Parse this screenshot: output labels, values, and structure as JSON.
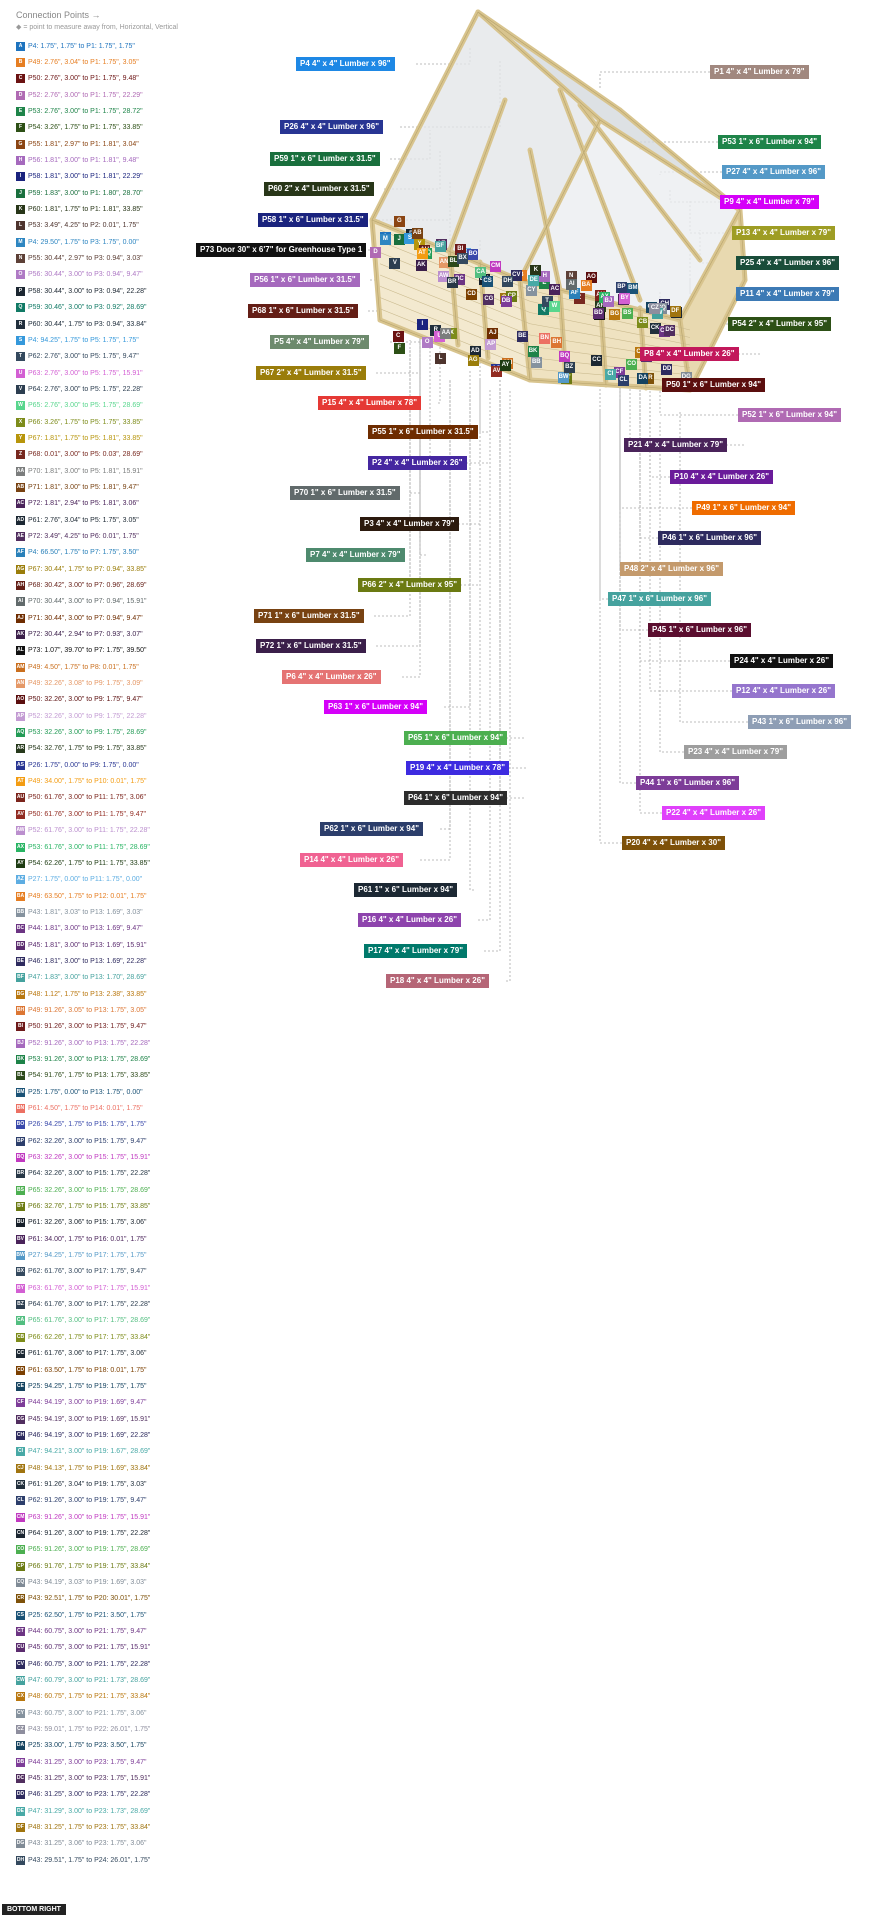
{
  "header": {
    "title": "Connection Points →",
    "subtitle": "◆ = point to measure away from, Horizontal, Vertical"
  },
  "connection_points": [
    {
      "code": "A",
      "text": "P4: 1.75\", 1.75\" to P1: 1.75\", 1.75\"",
      "color": "#1e73be"
    },
    {
      "code": "B",
      "text": "P49: 2.76\", 3.04\" to P1: 1.75\", 3.05\"",
      "color": "#e67e22"
    },
    {
      "code": "C",
      "text": "P50: 2.76\", 3.00\" to P1: 1.75\", 9.48\"",
      "color": "#6b1212"
    },
    {
      "code": "D",
      "text": "P52: 2.76\", 3.00\" to P1: 1.75\", 22.29\"",
      "color": "#b06ab3"
    },
    {
      "code": "E",
      "text": "P53: 2.76\", 3.00\" to P1: 1.75\", 28.72\"",
      "color": "#1e8449"
    },
    {
      "code": "F",
      "text": "P54: 3.26\", 1.75\" to P1: 1.75\", 33.85\"",
      "color": "#2d5016"
    },
    {
      "code": "G",
      "text": "P55: 1.81\", 2.97\" to P1: 1.81\", 3.04\"",
      "color": "#8b4513"
    },
    {
      "code": "H",
      "text": "P56: 1.81\", 3.00\" to P1: 1.81\", 9.48\"",
      "color": "#a569bd"
    },
    {
      "code": "I",
      "text": "P58: 1.81\", 3.00\" to P1: 1.81\", 22.29\"",
      "color": "#1a237e"
    },
    {
      "code": "J",
      "text": "P59: 1.83\", 3.00\" to P1: 1.80\", 28.70\"",
      "color": "#196f3d"
    },
    {
      "code": "K",
      "text": "P60: 1.81\", 1.75\" to P1: 1.81\", 33.85\"",
      "color": "#283618"
    },
    {
      "code": "L",
      "text": "P53: 3.49\", 4.25\" to P2: 0.01\", 1.75\"",
      "color": "#4e342e"
    },
    {
      "code": "M",
      "text": "P4: 29.50\", 1.75\" to P3: 1.75\", 0.00\"",
      "color": "#2e86c1"
    },
    {
      "code": "N",
      "text": "P55: 30.44\", 2.97\" to P3: 0.94\", 3.03\"",
      "color": "#5d4037"
    },
    {
      "code": "O",
      "text": "P56: 30.44\", 3.00\" to P3: 0.94\", 9.47\"",
      "color": "#af7ac5"
    },
    {
      "code": "P",
      "text": "P58: 30.44\", 3.00\" to P3: 0.94\", 22.28\"",
      "color": "#1b2631"
    },
    {
      "code": "Q",
      "text": "P59: 30.46\", 3.00\" to P3: 0.92\", 28.69\"",
      "color": "#117a65"
    },
    {
      "code": "R",
      "text": "P60: 30.44\", 1.75\" to P3: 0.94\", 33.84\"",
      "color": "#212f3d"
    },
    {
      "code": "S",
      "text": "P4: 94.25\", 1.75\" to P5: 1.75\", 1.75\"",
      "color": "#3498db"
    },
    {
      "code": "T",
      "text": "P62: 2.76\", 3.00\" to P5: 1.75\", 9.47\"",
      "color": "#34495e"
    },
    {
      "code": "U",
      "text": "P63: 2.76\", 3.00\" to P5: 1.75\", 15.91\"",
      "color": "#d35fd3"
    },
    {
      "code": "V",
      "text": "P64: 2.76\", 3.00\" to P5: 1.75\", 22.28\"",
      "color": "#2c3e50"
    },
    {
      "code": "W",
      "text": "P65: 2.76\", 3.00\" to P5: 1.75\", 28.69\"",
      "color": "#58d68d"
    },
    {
      "code": "X",
      "text": "P66: 3.26\", 1.75\" to P5: 1.75\", 33.85\"",
      "color": "#7d8c1a"
    },
    {
      "code": "Y",
      "text": "P67: 1.81\", 1.75\" to P5: 1.81\", 33.85\"",
      "color": "#b7950b"
    },
    {
      "code": "Z",
      "text": "P68: 0.01\", 3.00\" to P5: 0.03\", 28.69\"",
      "color": "#78281f"
    },
    {
      "code": "AA",
      "text": "P70: 1.81\", 3.00\" to P5: 1.81\", 15.91\"",
      "color": "#7b7d7d"
    },
    {
      "code": "AB",
      "text": "P71: 1.81\", 3.00\" to P5: 1.81\", 9.47\"",
      "color": "#784212"
    },
    {
      "code": "AC",
      "text": "P72: 1.81\", 2.94\" to P5: 1.81\", 3.06\"",
      "color": "#4a235a"
    },
    {
      "code": "AD",
      "text": "P61: 2.76\", 3.04\" to P5: 1.75\", 3.05\"",
      "color": "#1c2833"
    },
    {
      "code": "AE",
      "text": "P72: 3.49\", 4.25\" to P6: 0.01\", 1.75\"",
      "color": "#512e5f"
    },
    {
      "code": "AF",
      "text": "P4: 66.50\", 1.75\" to P7: 1.75\", 3.50\"",
      "color": "#2980b9"
    },
    {
      "code": "AG",
      "text": "P67: 30.44\", 1.75\" to P7: 0.94\", 33.85\"",
      "color": "#9a7d0a"
    },
    {
      "code": "AH",
      "text": "P68: 30.42\", 3.00\" to P7: 0.96\", 28.69\"",
      "color": "#641e16"
    },
    {
      "code": "AI",
      "text": "P70: 30.44\", 3.00\" to P7: 0.94\", 15.91\"",
      "color": "#616a6b"
    },
    {
      "code": "AJ",
      "text": "P71: 30.44\", 3.00\" to P7: 0.94\", 9.47\"",
      "color": "#6e2c00"
    },
    {
      "code": "AK",
      "text": "P72: 30.44\", 2.94\" to P7: 0.93\", 3.07\"",
      "color": "#3b1f4a"
    },
    {
      "code": "AL",
      "text": "P73: 1.07\", 39.70\" to P7: 1.75\", 39.50\"",
      "color": "#111111"
    },
    {
      "code": "AM",
      "text": "P49: 4.50\", 1.75\" to P8: 0.01\", 1.75\"",
      "color": "#ca6f1e"
    },
    {
      "code": "AN",
      "text": "P49: 32.26\", 3.08\" to P9: 1.75\", 3.09\"",
      "color": "#e59866"
    },
    {
      "code": "AO",
      "text": "P50: 32.26\", 3.00\" to P9: 1.75\", 9.47\"",
      "color": "#5b0e0e"
    },
    {
      "code": "AP",
      "text": "P52: 32.26\", 3.00\" to P9: 1.75\", 22.28\"",
      "color": "#c39bd3"
    },
    {
      "code": "AQ",
      "text": "P53: 32.26\", 3.00\" to P9: 1.75\", 28.69\"",
      "color": "#239b56"
    },
    {
      "code": "AR",
      "text": "P54: 32.76\", 1.75\" to P9: 1.75\", 33.85\"",
      "color": "#27391c"
    },
    {
      "code": "AS",
      "text": "P26: 1.75\", 0.00\" to P9: 1.75\", 0.00\"",
      "color": "#283593"
    },
    {
      "code": "AT",
      "text": "P49: 34.00\", 1.75\" to P10: 0.01\", 1.75\"",
      "color": "#f39c12"
    },
    {
      "code": "AU",
      "text": "P50: 61.76\", 3.00\" to P11: 1.75\", 3.06\"",
      "color": "#7b241c"
    },
    {
      "code": "AV",
      "text": "P50: 61.76\", 3.00\" to P11: 1.75\", 9.47\"",
      "color": "#922b21"
    },
    {
      "code": "AW",
      "text": "P52: 61.76\", 3.00\" to P11: 1.75\", 22.28\"",
      "color": "#bb8fce"
    },
    {
      "code": "AX",
      "text": "P53: 61.76\", 3.00\" to P11: 1.75\", 28.69\"",
      "color": "#28b463"
    },
    {
      "code": "AY",
      "text": "P54: 62.26\", 1.75\" to P11: 1.75\", 33.85\"",
      "color": "#1d3b12"
    },
    {
      "code": "AZ",
      "text": "P27: 1.75\", 0.00\" to P11: 1.75\", 0.00\"",
      "color": "#5dade2"
    },
    {
      "code": "BA",
      "text": "P49: 63.50\", 1.75\" to P12: 0.01\", 1.75\"",
      "color": "#e67e22"
    },
    {
      "code": "BB",
      "text": "P43: 1.81\", 3.03\" to P13: 1.69\", 3.03\"",
      "color": "#85929e"
    },
    {
      "code": "BC",
      "text": "P44: 1.81\", 3.00\" to P13: 1.69\", 9.47\"",
      "color": "#6c3483"
    },
    {
      "code": "BD",
      "text": "P45: 1.81\", 3.00\" to P13: 1.69\", 15.91\"",
      "color": "#5b2c6f"
    },
    {
      "code": "BE",
      "text": "P46: 1.81\", 3.00\" to P13: 1.69\", 22.28\"",
      "color": "#2e2b5f"
    },
    {
      "code": "BF",
      "text": "P47: 1.83\", 3.00\" to P13: 1.70\", 28.69\"",
      "color": "#45a29e"
    },
    {
      "code": "BG",
      "text": "P48: 1.12\", 1.75\" to P13: 2.38\", 33.85\"",
      "color": "#b9770e"
    },
    {
      "code": "BH",
      "text": "P49: 91.26\", 3.05\" to P13: 1.75\", 3.05\"",
      "color": "#dc7633"
    },
    {
      "code": "BI",
      "text": "P50: 91.26\", 3.00\" to P13: 1.75\", 9.47\"",
      "color": "#6e1a1a"
    },
    {
      "code": "BJ",
      "text": "P52: 91.26\", 3.00\" to P13: 1.75\", 22.28\"",
      "color": "#a569bd"
    },
    {
      "code": "BK",
      "text": "P53: 91.26\", 3.00\" to P13: 1.75\", 28.69\"",
      "color": "#1d8348"
    },
    {
      "code": "BL",
      "text": "P54: 91.76\", 1.75\" to P13: 1.75\", 33.85\"",
      "color": "#2d4a1a"
    },
    {
      "code": "BM",
      "text": "P25: 1.75\", 0.00\" to P13: 1.75\", 0.00\"",
      "color": "#1a5276"
    },
    {
      "code": "BN",
      "text": "P61: 4.50\", 1.75\" to P14: 0.01\", 1.75\"",
      "color": "#ec7063"
    },
    {
      "code": "BO",
      "text": "P26: 94.25\", 1.75\" to P15: 1.75\", 1.75\"",
      "color": "#3949ab"
    },
    {
      "code": "BP",
      "text": "P62: 32.26\", 3.00\" to P15: 1.75\", 9.47\"",
      "color": "#2c3e6b"
    },
    {
      "code": "BQ",
      "text": "P63: 32.26\", 3.00\" to P15: 1.75\", 15.91\"",
      "color": "#c039c0"
    },
    {
      "code": "BR",
      "text": "P64: 32.26\", 3.00\" to P15: 1.75\", 22.28\"",
      "color": "#273746"
    },
    {
      "code": "BS",
      "text": "P65: 32.26\", 3.00\" to P15: 1.75\", 28.69\"",
      "color": "#4caf50"
    },
    {
      "code": "BT",
      "text": "P66: 32.76\", 1.75\" to P15: 1.75\", 33.85\"",
      "color": "#6b7a12"
    },
    {
      "code": "BU",
      "text": "P61: 32.26\", 3.06\" to P15: 1.75\", 3.06\"",
      "color": "#17202a"
    },
    {
      "code": "BV",
      "text": "P61: 34.00\", 1.75\" to P16: 0.01\", 1.75\"",
      "color": "#4a235a"
    },
    {
      "code": "BW",
      "text": "P27: 94.25\", 1.75\" to P17: 1.75\", 1.75\"",
      "color": "#5499c7"
    },
    {
      "code": "BX",
      "text": "P62: 61.76\", 3.00\" to P17: 1.75\", 9.47\"",
      "color": "#34495e"
    },
    {
      "code": "BY",
      "text": "P63: 61.76\", 3.00\" to P17: 1.75\", 15.91\"",
      "color": "#d35fd3"
    },
    {
      "code": "BZ",
      "text": "P64: 61.76\", 3.00\" to P17: 1.75\", 22.28\"",
      "color": "#2c3e50"
    },
    {
      "code": "CA",
      "text": "P65: 61.76\", 3.00\" to P17: 1.75\", 28.69\"",
      "color": "#52be80"
    },
    {
      "code": "CB",
      "text": "P66: 62.26\", 1.75\" to P17: 1.75\", 33.84\"",
      "color": "#7d8c1a"
    },
    {
      "code": "CC",
      "text": "P61: 61.76\", 3.06\" to P17: 1.75\", 3.06\"",
      "color": "#1c2833"
    },
    {
      "code": "CD",
      "text": "P61: 63.50\", 1.75\" to P18: 0.01\", 1.75\"",
      "color": "#7b3f00"
    },
    {
      "code": "CE",
      "text": "P25: 94.25\", 1.75\" to P19: 1.75\", 1.75\"",
      "color": "#154360"
    },
    {
      "code": "CF",
      "text": "P44: 94.19\", 3.00\" to P19: 1.69\", 9.47\"",
      "color": "#7d3c98"
    },
    {
      "code": "CG",
      "text": "P45: 94.19\", 3.00\" to P19: 1.69\", 15.91\"",
      "color": "#512e5f"
    },
    {
      "code": "CH",
      "text": "P46: 94.19\", 3.00\" to P19: 1.69\", 22.28\"",
      "color": "#2e2b5f"
    },
    {
      "code": "CI",
      "text": "P47: 94.21\", 3.00\" to P19: 1.67\", 28.69\"",
      "color": "#48a9a6"
    },
    {
      "code": "CJ",
      "text": "P48: 94.13\", 1.75\" to P19: 1.69\", 33.84\"",
      "color": "#a0740f"
    },
    {
      "code": "CK",
      "text": "P61: 91.26\", 3.04\" to P19: 1.75\", 3.03\"",
      "color": "#212f3c"
    },
    {
      "code": "CL",
      "text": "P62: 91.26\", 3.00\" to P19: 1.75\", 9.47\"",
      "color": "#2c3e6b"
    },
    {
      "code": "CM",
      "text": "P63: 91.26\", 3.00\" to P19: 1.75\", 15.91\"",
      "color": "#c039c0"
    },
    {
      "code": "CN",
      "text": "P64: 91.26\", 3.00\" to P19: 1.75\", 22.28\"",
      "color": "#1b2631"
    },
    {
      "code": "CO",
      "text": "P65: 91.26\", 3.00\" to P19: 1.75\", 28.69\"",
      "color": "#4caf50"
    },
    {
      "code": "CP",
      "text": "P66: 91.76\", 1.75\" to P19: 1.75\", 33.84\"",
      "color": "#6b7a12"
    },
    {
      "code": "CQ",
      "text": "P43: 94.19\", 3.03\" to P19: 1.69\", 3.03\"",
      "color": "#808b96"
    },
    {
      "code": "CR",
      "text": "P43: 92.51\", 1.75\" to P20: 30.01\", 1.75\"",
      "color": "#7e5109"
    },
    {
      "code": "CS",
      "text": "P25: 62.50\", 1.75\" to P21: 3.50\", 1.75\"",
      "color": "#1a5276"
    },
    {
      "code": "CT",
      "text": "P44: 60.75\", 3.00\" to P21: 1.75\", 9.47\"",
      "color": "#6c3483"
    },
    {
      "code": "CU",
      "text": "P45: 60.75\", 3.00\" to P21: 1.75\", 15.91\"",
      "color": "#5b2c6f"
    },
    {
      "code": "CV",
      "text": "P46: 60.75\", 3.00\" to P21: 1.75\", 22.28\"",
      "color": "#2e2b5f"
    },
    {
      "code": "CW",
      "text": "P47: 60.79\", 3.00\" to P21: 1.73\", 28.69\"",
      "color": "#45a29e"
    },
    {
      "code": "CX",
      "text": "P48: 60.75\", 1.75\" to P21: 1.75\", 33.84\"",
      "color": "#b9770e"
    },
    {
      "code": "CY",
      "text": "P43: 60.75\", 3.00\" to P21: 1.75\", 3.06\"",
      "color": "#85929e"
    },
    {
      "code": "CZ",
      "text": "P43: 59.01\", 1.75\" to P22: 26.01\", 1.75\"",
      "color": "#8e8e9e"
    },
    {
      "code": "DA",
      "text": "P25: 33.00\", 1.75\" to P23: 3.50\", 1.75\"",
      "color": "#154360"
    },
    {
      "code": "DB",
      "text": "P44: 31.25\", 3.00\" to P23: 1.75\", 9.47\"",
      "color": "#7d3c98"
    },
    {
      "code": "DC",
      "text": "P45: 31.25\", 3.00\" to P23: 1.75\", 15.91\"",
      "color": "#512e5f"
    },
    {
      "code": "DD",
      "text": "P46: 31.25\", 3.00\" to P23: 1.75\", 22.28\"",
      "color": "#2e2b5f"
    },
    {
      "code": "DE",
      "text": "P47: 31.29\", 3.00\" to P23: 1.73\", 28.69\"",
      "color": "#48a9a6"
    },
    {
      "code": "DF",
      "text": "P48: 31.25\", 1.75\" to P23: 1.75\", 33.84\"",
      "color": "#a0740f"
    },
    {
      "code": "DG",
      "text": "P43: 31.25\", 3.06\" to P23: 1.75\", 3.06\"",
      "color": "#808b96"
    },
    {
      "code": "DH",
      "text": "P43: 29.51\", 1.75\" to P24: 26.01\", 1.75\"",
      "color": "#34495e"
    }
  ],
  "parts": [
    {
      "text": "P4 4\" x 4\" Lumber x 96\"",
      "color": "#1e88e5"
    },
    {
      "text": "P1 4\" x 4\" Lumber x 79\"",
      "color": "#a1887f"
    },
    {
      "text": "P26 4\" x 4\" Lumber x 96\"",
      "color": "#283593"
    },
    {
      "text": "P53 1\" x 6\" Lumber x 94\"",
      "color": "#1e8449"
    },
    {
      "text": "P59 1\" x 6\" Lumber x 31.5\"",
      "color": "#196f3d"
    },
    {
      "text": "P27 4\" x 4\" Lumber x 96\"",
      "color": "#5499c7"
    },
    {
      "text": "P60 2\" x 4\" Lumber x 31.5\"",
      "color": "#283618"
    },
    {
      "text": "P9 4\" x 4\" Lumber x 79\"",
      "color": "#d500f9"
    },
    {
      "text": "P58 1\" x 6\" Lumber x 31.5\"",
      "color": "#1a237e"
    },
    {
      "text": "P13 4\" x 4\" Lumber x 79\"",
      "color": "#9e9d24"
    },
    {
      "text": "P73 Door 30\" x 6'7\" for Greenhouse Type 1",
      "color": "#111111"
    },
    {
      "text": "P25 4\" x 4\" Lumber x 96\"",
      "color": "#1a4d3a"
    },
    {
      "text": "P56 1\" x 6\" Lumber x 31.5\"",
      "color": "#a569bd"
    },
    {
      "text": "P11 4\" x 4\" Lumber x 79\"",
      "color": "#3d7ab5"
    },
    {
      "text": "P68 1\" x 6\" Lumber x 31.5\"",
      "color": "#641e16"
    },
    {
      "text": "P54 2\" x 4\" Lumber x 95\"",
      "color": "#2d5016"
    },
    {
      "text": "P5 4\" x 4\" Lumber x 79\"",
      "color": "#6d8a6d"
    },
    {
      "text": "P8 4\" x 4\" Lumber x 26\"",
      "color": "#c2185b"
    },
    {
      "text": "P67 2\" x 4\" Lumber x 31.5\"",
      "color": "#9a7d0a"
    },
    {
      "text": "P50 1\" x 6\" Lumber x 94\"",
      "color": "#5b0e0e"
    },
    {
      "text": "P15 4\" x 4\" Lumber x 78\"",
      "color": "#e53935"
    },
    {
      "text": "P52 1\" x 6\" Lumber x 94\"",
      "color": "#b06ab3"
    },
    {
      "text": "P55 1\" x 6\" Lumber x 31.5\"",
      "color": "#6e2c00"
    },
    {
      "text": "P21 4\" x 4\" Lumber x 79\"",
      "color": "#4a235a"
    },
    {
      "text": "P2 4\" x 4\" Lumber x 26\"",
      "color": "#4527a0"
    },
    {
      "text": "P10 4\" x 4\" Lumber x 26\"",
      "color": "#6a1b9a"
    },
    {
      "text": "P70 1\" x 6\" Lumber x 31.5\"",
      "color": "#616a6b"
    },
    {
      "text": "P49 1\" x 6\" Lumber x 94\"",
      "color": "#ef6c00"
    },
    {
      "text": "P3 4\" x 4\" Lumber x 79\"",
      "color": "#2c1a0e"
    },
    {
      "text": "P46 1\" x 6\" Lumber x 96\"",
      "color": "#2e2b5f"
    },
    {
      "text": "P7 4\" x 4\" Lumber x 79\"",
      "color": "#4e8a6e"
    },
    {
      "text": "P48 2\" x 4\" Lumber x 96\"",
      "color": "#c49a6c"
    },
    {
      "text": "P66 2\" x 4\" Lumber x 95\"",
      "color": "#6b7a12"
    },
    {
      "text": "P47 1\" x 6\" Lumber x 96\"",
      "color": "#45a29e"
    },
    {
      "text": "P71 1\" x 6\" Lumber x 31.5\"",
      "color": "#784212"
    },
    {
      "text": "P45 1\" x 6\" Lumber x 96\"",
      "color": "#5b0e2f"
    },
    {
      "text": "P72 1\" x 6\" Lumber x 31.5\"",
      "color": "#3b1f4a"
    },
    {
      "text": "P24 4\" x 4\" Lumber x 26\"",
      "color": "#111111"
    },
    {
      "text": "P6 4\" x 4\" Lumber x 26\"",
      "color": "#e57373"
    },
    {
      "text": "P12 4\" x 4\" Lumber x 26\"",
      "color": "#9575cd"
    },
    {
      "text": "P63 1\" x 6\" Lumber x 94\"",
      "color": "#d500f9"
    },
    {
      "text": "P43 1\" x 6\" Lumber x 96\"",
      "color": "#8e9eb5"
    },
    {
      "text": "P23 4\" x 4\" Lumber x 79\"",
      "color": "#9e9e9e"
    },
    {
      "text": "P65 1\" x 6\" Lumber x 94\"",
      "color": "#4caf50"
    },
    {
      "text": "P19 4\" x 4\" Lumber x 78\"",
      "color": "#3d2be0"
    },
    {
      "text": "P44 1\" x 6\" Lumber x 96\"",
      "color": "#7d3c98"
    },
    {
      "text": "P64 1\" x 6\" Lumber x 94\"",
      "color": "#2c2c2c"
    },
    {
      "text": "P22 4\" x 4\" Lumber x 26\"",
      "color": "#e040fb"
    },
    {
      "text": "P62 1\" x 6\" Lumber x 94\"",
      "color": "#2c3e6b"
    },
    {
      "text": "P20 4\" x 4\" Lumber x 30\"",
      "color": "#7e5109"
    },
    {
      "text": "P14 4\" x 4\" Lumber x 26\"",
      "color": "#f06292"
    },
    {
      "text": "P61 1\" x 6\" Lumber x 94\"",
      "color": "#1c2833"
    },
    {
      "text": "P16 4\" x 4\" Lumber x 26\"",
      "color": "#8e44ad"
    },
    {
      "text": "P17 4\" x 4\" Lumber x 79\"",
      "color": "#00796b"
    },
    {
      "text": "P18 4\" x 4\" Lumber x 26\"",
      "color": "#b56576"
    }
  ],
  "footer": {
    "label": "BOTTOM RIGHT"
  }
}
